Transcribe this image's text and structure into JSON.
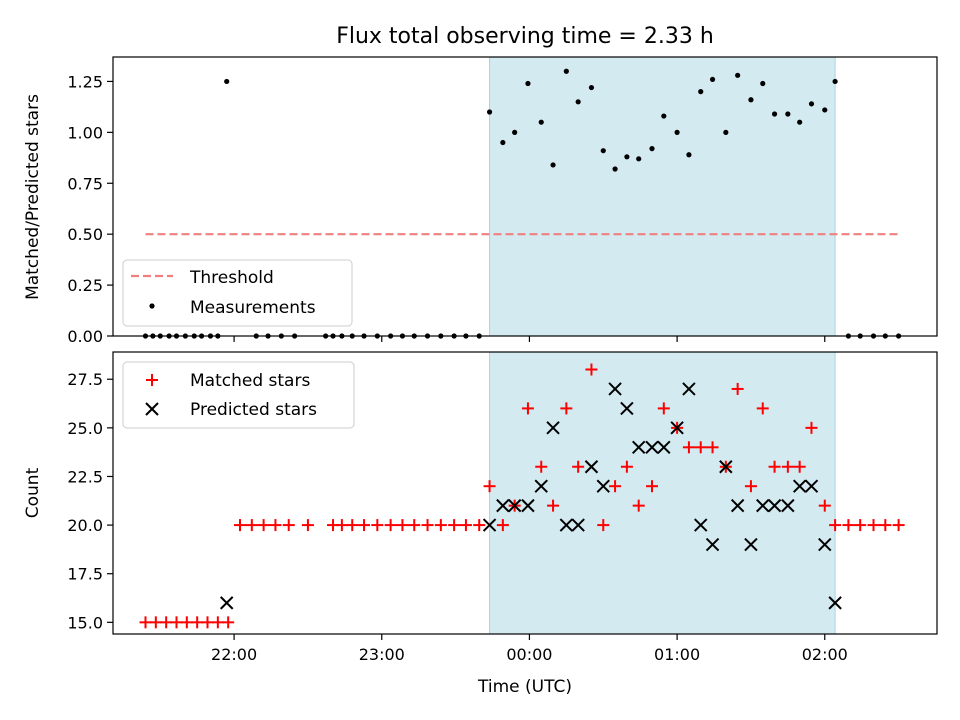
{
  "figure": {
    "title": "Flux total observing time = 2.33 h",
    "xlabel": "Time (UTC)",
    "xtick_labels": [
      "22:00",
      "23:00",
      "00:00",
      "01:00",
      "02:00"
    ],
    "highlight_color": "#d3eaf1"
  },
  "chart_data": [
    {
      "type": "scatter",
      "ylabel": "Matched/Predicted stars",
      "ylim": [
        0,
        1.37
      ],
      "yticks": [
        0.0,
        0.25,
        0.5,
        0.75,
        1.0,
        1.25
      ],
      "ytick_labels": [
        "0.00",
        "0.25",
        "0.50",
        "0.75",
        "1.00",
        "1.25"
      ],
      "xlim_hours": [
        -2.82,
        2.76
      ],
      "highlight_span_hours": [
        -0.27,
        2.07
      ],
      "legend_position": "lower-left",
      "threshold": {
        "name": "Threshold",
        "value": 0.5,
        "x_range_hours": [
          -2.6,
          2.5
        ],
        "color": "#f08080"
      },
      "series": [
        {
          "name": "Measurements",
          "color": "#000000",
          "points": [
            [
              -2.6,
              0
            ],
            [
              -2.55,
              0
            ],
            [
              -2.5,
              0
            ],
            [
              -2.44,
              0
            ],
            [
              -2.39,
              0
            ],
            [
              -2.33,
              0
            ],
            [
              -2.27,
              0
            ],
            [
              -2.22,
              0
            ],
            [
              -2.16,
              0
            ],
            [
              -2.11,
              0
            ],
            [
              -2.05,
              1.25
            ],
            [
              -1.85,
              0
            ],
            [
              -1.77,
              0
            ],
            [
              -1.68,
              0
            ],
            [
              -1.59,
              0
            ],
            [
              -1.38,
              0
            ],
            [
              -1.33,
              0
            ],
            [
              -1.27,
              0
            ],
            [
              -1.2,
              0
            ],
            [
              -1.12,
              0
            ],
            [
              -1.03,
              0
            ],
            [
              -0.94,
              0
            ],
            [
              -0.86,
              0
            ],
            [
              -0.78,
              0
            ],
            [
              -0.69,
              0
            ],
            [
              -0.6,
              0
            ],
            [
              -0.51,
              0
            ],
            [
              -0.43,
              0
            ],
            [
              -0.34,
              0
            ],
            [
              -0.27,
              1.1
            ],
            [
              -0.18,
              0.95
            ],
            [
              -0.1,
              1.0
            ],
            [
              -0.01,
              1.24
            ],
            [
              0.08,
              1.05
            ],
            [
              0.16,
              0.84
            ],
            [
              0.25,
              1.3
            ],
            [
              0.33,
              1.15
            ],
            [
              0.42,
              1.22
            ],
            [
              0.5,
              0.91
            ],
            [
              0.58,
              0.82
            ],
            [
              0.66,
              0.88
            ],
            [
              0.74,
              0.87
            ],
            [
              0.83,
              0.92
            ],
            [
              0.91,
              1.08
            ],
            [
              1.0,
              1.0
            ],
            [
              1.08,
              0.89
            ],
            [
              1.16,
              1.2
            ],
            [
              1.24,
              1.26
            ],
            [
              1.33,
              1.0
            ],
            [
              1.41,
              1.28
            ],
            [
              1.5,
              1.16
            ],
            [
              1.58,
              1.24
            ],
            [
              1.66,
              1.09
            ],
            [
              1.75,
              1.09
            ],
            [
              1.83,
              1.05
            ],
            [
              1.91,
              1.14
            ],
            [
              2.0,
              1.11
            ],
            [
              2.07,
              1.25
            ],
            [
              2.16,
              0
            ],
            [
              2.24,
              0
            ],
            [
              2.33,
              0
            ],
            [
              2.41,
              0
            ],
            [
              2.5,
              0
            ]
          ]
        }
      ]
    },
    {
      "type": "scatter",
      "ylabel": "Count",
      "ylim": [
        14.4,
        28.9
      ],
      "yticks": [
        15.0,
        17.5,
        20.0,
        22.5,
        25.0,
        27.5
      ],
      "ytick_labels": [
        "15.0",
        "17.5",
        "20.0",
        "22.5",
        "25.0",
        "27.5"
      ],
      "xlim_hours": [
        -2.82,
        2.76
      ],
      "highlight_span_hours": [
        -0.27,
        2.07
      ],
      "legend_position": "upper-left",
      "series": [
        {
          "name": "Matched stars",
          "color": "#ff0000",
          "marker": "plus",
          "points": [
            [
              -2.6,
              15
            ],
            [
              -2.53,
              15
            ],
            [
              -2.46,
              15
            ],
            [
              -2.39,
              15
            ],
            [
              -2.32,
              15
            ],
            [
              -2.25,
              15
            ],
            [
              -2.18,
              15
            ],
            [
              -2.11,
              15
            ],
            [
              -2.04,
              15
            ],
            [
              -1.96,
              20
            ],
            [
              -1.88,
              20
            ],
            [
              -1.8,
              20
            ],
            [
              -1.72,
              20
            ],
            [
              -1.63,
              20
            ],
            [
              -1.5,
              20
            ],
            [
              -1.33,
              20
            ],
            [
              -1.27,
              20
            ],
            [
              -1.2,
              20
            ],
            [
              -1.12,
              20
            ],
            [
              -1.03,
              20
            ],
            [
              -0.94,
              20
            ],
            [
              -0.86,
              20
            ],
            [
              -0.78,
              20
            ],
            [
              -0.69,
              20
            ],
            [
              -0.6,
              20
            ],
            [
              -0.51,
              20
            ],
            [
              -0.43,
              20
            ],
            [
              -0.34,
              20
            ],
            [
              -0.27,
              22
            ],
            [
              -0.18,
              20
            ],
            [
              -0.1,
              21
            ],
            [
              -0.01,
              26
            ],
            [
              0.08,
              23
            ],
            [
              0.16,
              21
            ],
            [
              0.25,
              26
            ],
            [
              0.33,
              23
            ],
            [
              0.42,
              28
            ],
            [
              0.5,
              20
            ],
            [
              0.58,
              22
            ],
            [
              0.66,
              23
            ],
            [
              0.74,
              21
            ],
            [
              0.83,
              22
            ],
            [
              0.91,
              26
            ],
            [
              1.0,
              25
            ],
            [
              1.08,
              24
            ],
            [
              1.16,
              24
            ],
            [
              1.24,
              24
            ],
            [
              1.33,
              23
            ],
            [
              1.41,
              27
            ],
            [
              1.5,
              22
            ],
            [
              1.58,
              26
            ],
            [
              1.66,
              23
            ],
            [
              1.75,
              23
            ],
            [
              1.83,
              23
            ],
            [
              1.91,
              25
            ],
            [
              2.0,
              21
            ],
            [
              2.07,
              20
            ],
            [
              2.16,
              20
            ],
            [
              2.24,
              20
            ],
            [
              2.33,
              20
            ],
            [
              2.41,
              20
            ],
            [
              2.5,
              20
            ]
          ]
        },
        {
          "name": "Predicted stars",
          "color": "#000000",
          "marker": "x",
          "points": [
            [
              -2.05,
              16
            ],
            [
              -0.27,
              20
            ],
            [
              -0.18,
              21
            ],
            [
              -0.1,
              21
            ],
            [
              -0.01,
              21
            ],
            [
              0.08,
              22
            ],
            [
              0.16,
              25
            ],
            [
              0.25,
              20
            ],
            [
              0.33,
              20
            ],
            [
              0.42,
              23
            ],
            [
              0.5,
              22
            ],
            [
              0.58,
              27
            ],
            [
              0.66,
              26
            ],
            [
              0.74,
              24
            ],
            [
              0.83,
              24
            ],
            [
              0.91,
              24
            ],
            [
              1.0,
              25
            ],
            [
              1.08,
              27
            ],
            [
              1.16,
              20
            ],
            [
              1.24,
              19
            ],
            [
              1.33,
              23
            ],
            [
              1.41,
              21
            ],
            [
              1.5,
              19
            ],
            [
              1.58,
              21
            ],
            [
              1.66,
              21
            ],
            [
              1.75,
              21
            ],
            [
              1.83,
              22
            ],
            [
              1.91,
              22
            ],
            [
              2.0,
              19
            ],
            [
              2.07,
              16
            ]
          ]
        }
      ]
    }
  ]
}
